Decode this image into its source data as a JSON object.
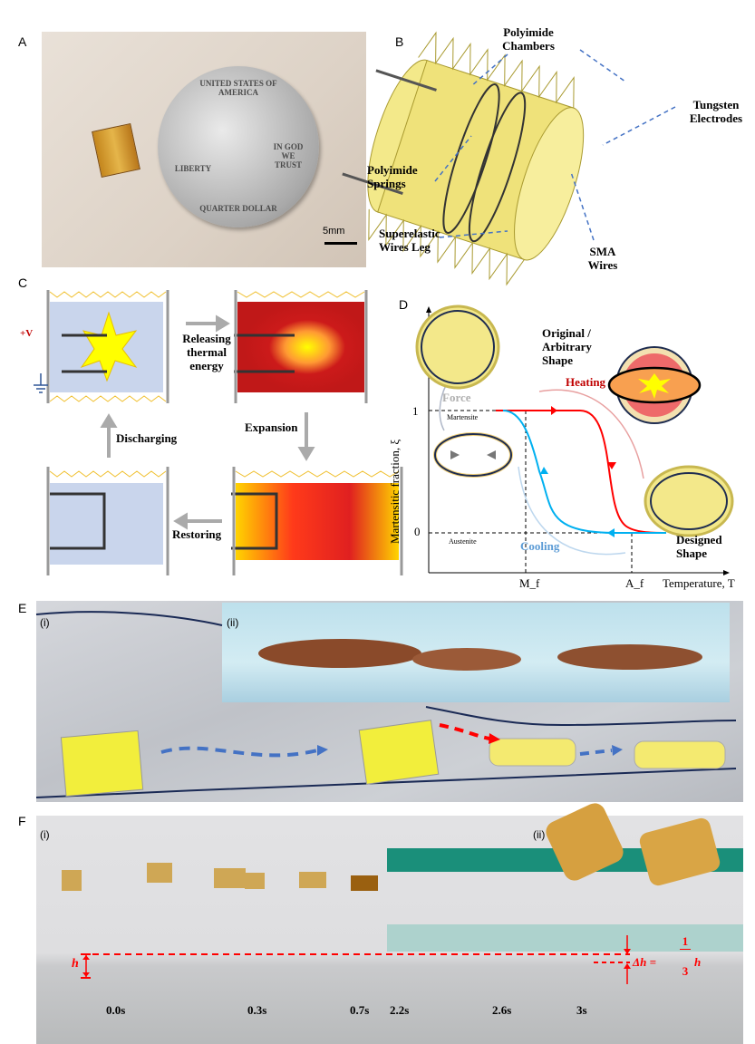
{
  "panels": {
    "a": {
      "label": "A",
      "scale_bar": "5mm",
      "coin_text": {
        "top": "UNITED STATES OF AMERICA",
        "left": "LIBERTY",
        "right": "IN GOD WE TRUST",
        "bottom": "QUARTER DOLLAR"
      }
    },
    "b": {
      "label": "B",
      "callouts": [
        "Polyimide Chambers",
        "Tungsten Electrodes",
        "Polyimide Springs",
        "Superelastic Wires Leg",
        "SMA Wires"
      ]
    },
    "c": {
      "label": "C",
      "voltage": "+V",
      "steps": [
        "Releasing thermal energy",
        "Expansion",
        "Restoring",
        "Discharging"
      ]
    },
    "d": {
      "label": "D",
      "shape_labels": {
        "original": "Original / Arbitrary Shape",
        "designed": "Designed Shape"
      },
      "process_labels": {
        "heating": "Heating",
        "cooling": "Cooling",
        "force": "Force"
      },
      "chart_data": {
        "type": "line",
        "xlabel": "Temperature, T",
        "ylabel": "Martensitic fraction, ξ",
        "x_ticks": [
          "M_f",
          "A_f"
        ],
        "y_ticks": [
          "0",
          "1"
        ],
        "phase_labels": {
          "top": "Martensite",
          "bottom": "Austenite"
        },
        "series": [
          {
            "name": "Heating",
            "color": "#ff0000"
          },
          {
            "name": "Cooling",
            "color": "#00b0f0"
          }
        ]
      }
    },
    "e": {
      "label": "E",
      "sub_i": "(i)",
      "sub_ii": "(ii)"
    },
    "f": {
      "label": "F",
      "sub_i": "(i)",
      "sub_ii": "(ii)",
      "h_label": "h",
      "dh_label": "Δh = ",
      "dh_num": "1",
      "dh_den": "3",
      "dh_h": "h",
      "times": [
        "0.0s",
        "0.3s",
        "0.7s",
        "2.2s",
        "2.6s",
        "3s"
      ]
    }
  },
  "colors": {
    "accent_red": "#ff0000",
    "accent_blue": "#00b0f0",
    "polyimide": "#e8d94a",
    "dashed_blue": "#4472c4"
  }
}
